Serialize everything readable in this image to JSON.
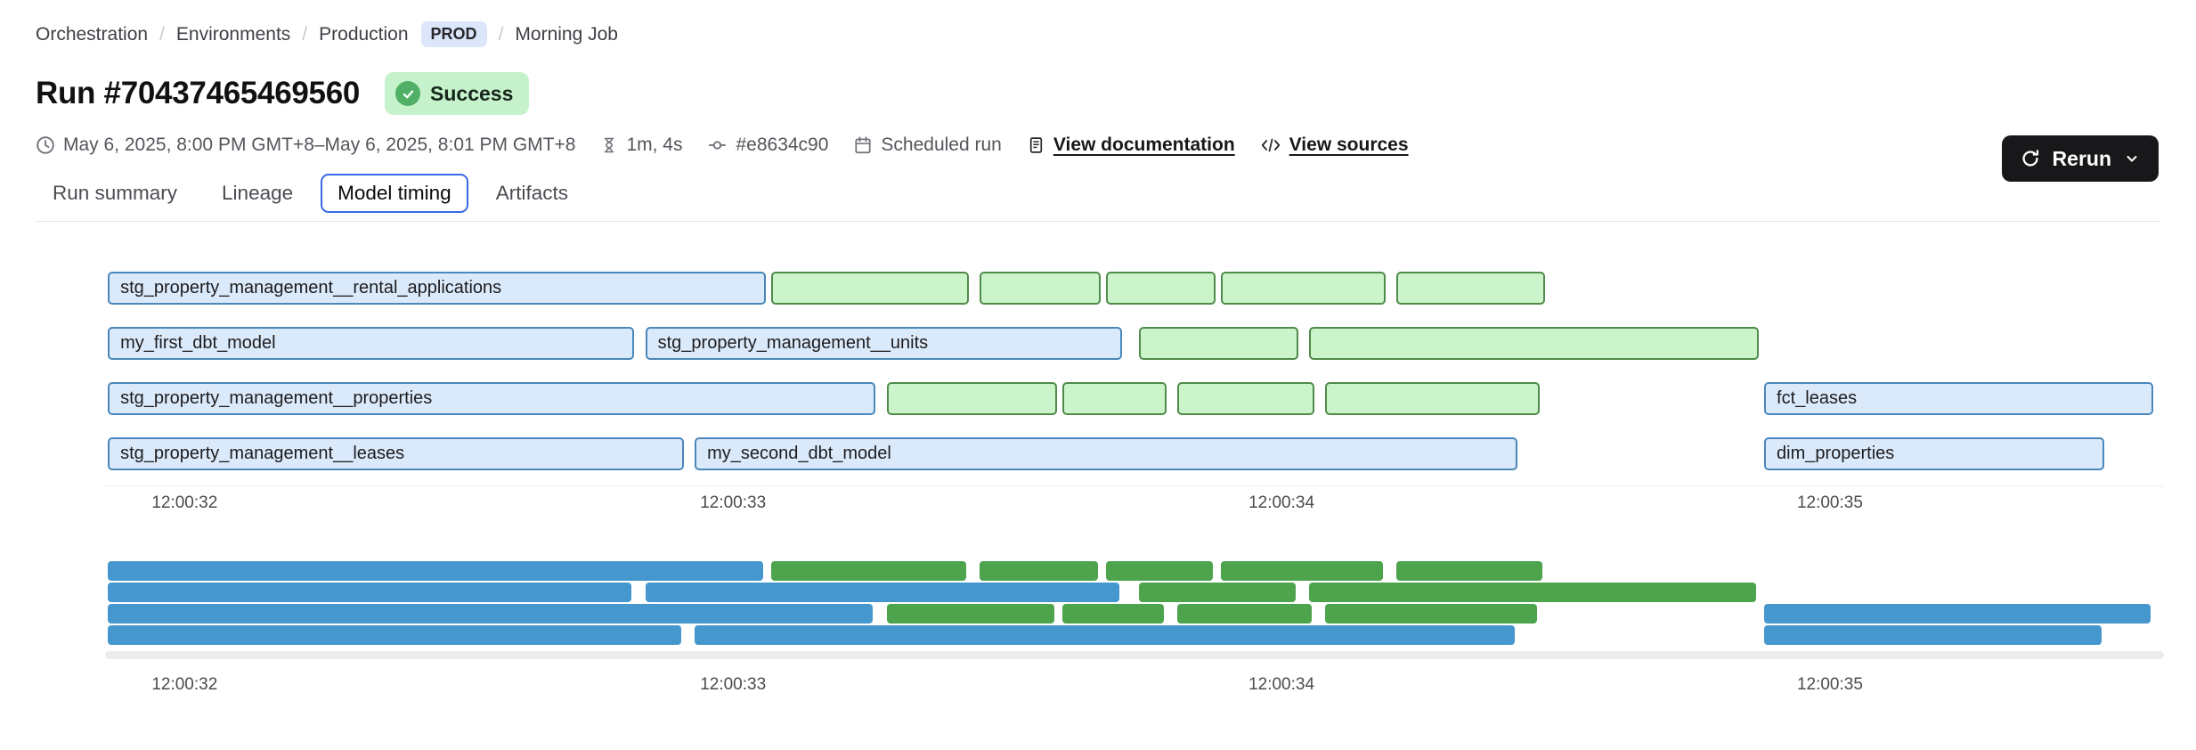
{
  "breadcrumb": {
    "separator": "/",
    "orchestration": "Orchestration",
    "environments": "Environments",
    "production": "Production",
    "prod_badge": "PROD",
    "job": "Morning Job"
  },
  "header": {
    "title": "Run #70437465469560",
    "status": "Success",
    "rerun_label": "Rerun"
  },
  "meta": {
    "date_range": "May 6, 2025, 8:00 PM GMT+8–May 6, 2025, 8:01 PM GMT+8",
    "duration": "1m, 4s",
    "commit": "#e8634c90",
    "trigger": "Scheduled run",
    "docs_link": "View documentation",
    "sources_link": "View sources"
  },
  "tabs": [
    {
      "label": "Run summary",
      "active": false
    },
    {
      "label": "Lineage",
      "active": false
    },
    {
      "label": "Model timing",
      "active": true
    },
    {
      "label": "Artifacts",
      "active": false
    }
  ],
  "colors": {
    "accent_blue": "#3968e7",
    "success_bg": "#c5f1cb",
    "success_icon": "#50b166",
    "prod_badge_bg": "#dbe6fb",
    "rerun_bg": "#18181b",
    "bar_blue_fill": "#dbeafa",
    "bar_blue_border": "#4a87ba",
    "bar_green_fill": "#ccf4cb",
    "bar_green_border": "#4f8b4a",
    "minimap_blue": "#4597ce",
    "minimap_green": "#4da44d"
  },
  "chart_data": {
    "type": "gantt",
    "title": "",
    "x_domain_seconds": [
      31.855,
      35.609
    ],
    "xlabel_format": "12:00:ss",
    "grid": false,
    "has_minimap": true,
    "ticks": [
      {
        "t": 32,
        "label": "12:00:32"
      },
      {
        "t": 33,
        "label": "12:00:33"
      },
      {
        "t": 34,
        "label": "12:00:34"
      },
      {
        "t": 35,
        "label": "12:00:35"
      }
    ],
    "rows": [
      [
        {
          "label": "stg_property_management__rental_applications",
          "start": 31.86,
          "end": 33.06,
          "color": "blue"
        },
        {
          "label": "",
          "start": 33.07,
          "end": 33.43,
          "color": "green"
        },
        {
          "label": "",
          "start": 33.45,
          "end": 33.67,
          "color": "green"
        },
        {
          "label": "",
          "start": 33.68,
          "end": 33.88,
          "color": "green"
        },
        {
          "label": "",
          "start": 33.89,
          "end": 34.19,
          "color": "green"
        },
        {
          "label": "",
          "start": 34.21,
          "end": 34.48,
          "color": "green"
        }
      ],
      [
        {
          "label": "my_first_dbt_model",
          "start": 31.86,
          "end": 32.82,
          "color": "blue"
        },
        {
          "label": "stg_property_management__units",
          "start": 32.84,
          "end": 33.71,
          "color": "blue"
        },
        {
          "label": "",
          "start": 33.74,
          "end": 34.03,
          "color": "green"
        },
        {
          "label": "",
          "start": 34.05,
          "end": 34.87,
          "color": "green"
        }
      ],
      [
        {
          "label": "stg_property_management__properties",
          "start": 31.86,
          "end": 33.26,
          "color": "blue"
        },
        {
          "label": "",
          "start": 33.28,
          "end": 33.59,
          "color": "green"
        },
        {
          "label": "",
          "start": 33.6,
          "end": 33.79,
          "color": "green"
        },
        {
          "label": "",
          "start": 33.81,
          "end": 34.06,
          "color": "green"
        },
        {
          "label": "",
          "start": 34.08,
          "end": 34.47,
          "color": "green"
        },
        {
          "label": "fct_leases",
          "start": 34.88,
          "end": 35.59,
          "color": "blue"
        }
      ],
      [
        {
          "label": "stg_property_management__leases",
          "start": 31.86,
          "end": 32.91,
          "color": "blue"
        },
        {
          "label": "my_second_dbt_model",
          "start": 32.93,
          "end": 34.43,
          "color": "blue"
        },
        {
          "label": "dim_properties",
          "start": 34.88,
          "end": 35.5,
          "color": "blue"
        }
      ]
    ]
  }
}
